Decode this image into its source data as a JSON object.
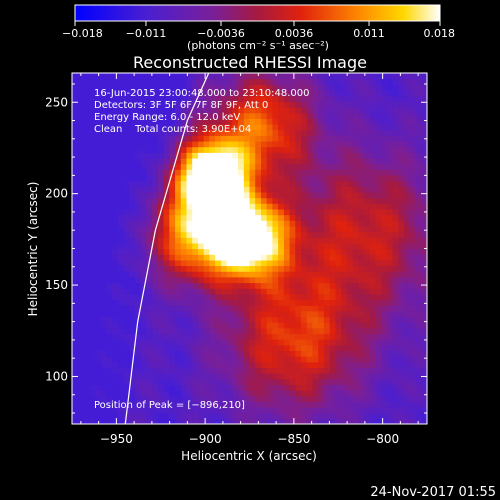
{
  "chart_data": {
    "type": "heatmap",
    "title": "Reconstructed RHESSI Image",
    "xlabel": "Heliocentric X (arcsec)",
    "ylabel": "Heliocentric Y (arcsec)",
    "xlim": [
      -975,
      -775
    ],
    "ylim": [
      74,
      266
    ],
    "x_ticks": [
      -950,
      -900,
      -850,
      -800
    ],
    "x_tick_labels": [
      "−950",
      "−900",
      "−850",
      "−800"
    ],
    "y_ticks": [
      100,
      150,
      200,
      250
    ],
    "y_tick_labels": [
      "100",
      "150",
      "200",
      "250"
    ],
    "colorbar": {
      "colormap": "purple-red-yellow-white",
      "range": [
        -0.018,
        0.018
      ],
      "tick_labels": [
        "−0.018",
        "−0.011",
        "−0.0036",
        "0.0036",
        "0.011",
        "0.018"
      ],
      "unit_label": "(photons cm⁻² s⁻¹ asec⁻²)"
    },
    "annotations": [
      "16-Jun-2015 23:00:48.000 to 23:10:48.000",
      "Detectors: 3F 5F 6F 7F 8F 9F, Att 0",
      "Energy Range: 6.0 - 12.0 keV",
      "Clean    Total counts: 3.90E+04",
      "Position of Peak = [−896,210]"
    ],
    "peak": {
      "x": -896,
      "y": 210
    },
    "sources": [
      {
        "x": -896,
        "y": 210,
        "sigma": 14,
        "amp": 0.95
      },
      {
        "x": -875,
        "y": 176,
        "sigma": 15,
        "amp": 0.85
      },
      {
        "x": -905,
        "y": 178,
        "sigma": 18,
        "amp": 0.62
      },
      {
        "x": -868,
        "y": 238,
        "sigma": 20,
        "amp": 0.48
      },
      {
        "x": -850,
        "y": 120,
        "sigma": 28,
        "amp": 0.42
      },
      {
        "x": -810,
        "y": 180,
        "sigma": 32,
        "amp": 0.35
      }
    ],
    "limb": [
      [
        -945,
        74
      ],
      [
        -938,
        130
      ],
      [
        -928,
        180
      ],
      [
        -910,
        240
      ],
      [
        -898,
        266
      ]
    ],
    "footer": "24-Nov-2017 01:55"
  }
}
